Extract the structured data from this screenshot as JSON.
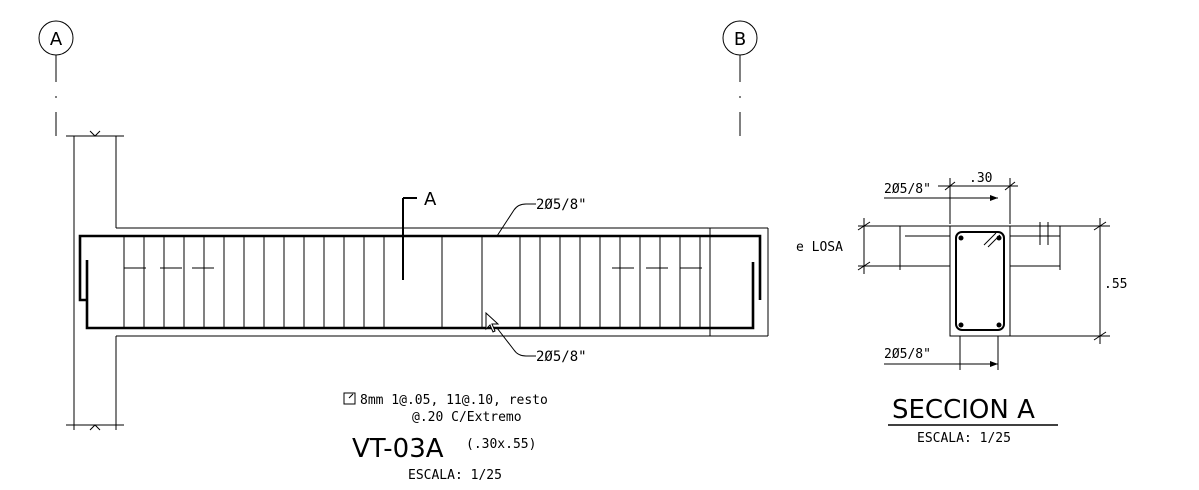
{
  "axes": {
    "left": "A",
    "right": "B"
  },
  "beam": {
    "section_mark": "A",
    "top_rebar": "2Ø5/8\"",
    "bottom_rebar": "2Ø5/8\"",
    "stirrup_spec_line1": "8mm  1@.05, 11@.10, resto",
    "stirrup_spec_line2": "@.20 C/Extremo",
    "name": "VT-03A",
    "size": "(.30x.55)",
    "scale": "ESCALA:  1/25"
  },
  "section": {
    "width_label": ".30",
    "top_rebar": "2Ø5/8\"",
    "bottom_rebar": "2Ø5/8\"",
    "slab_label": "e  LOSA",
    "height_label": ".55",
    "title": "SECCION A",
    "scale": "ESCALA:  1/25"
  }
}
